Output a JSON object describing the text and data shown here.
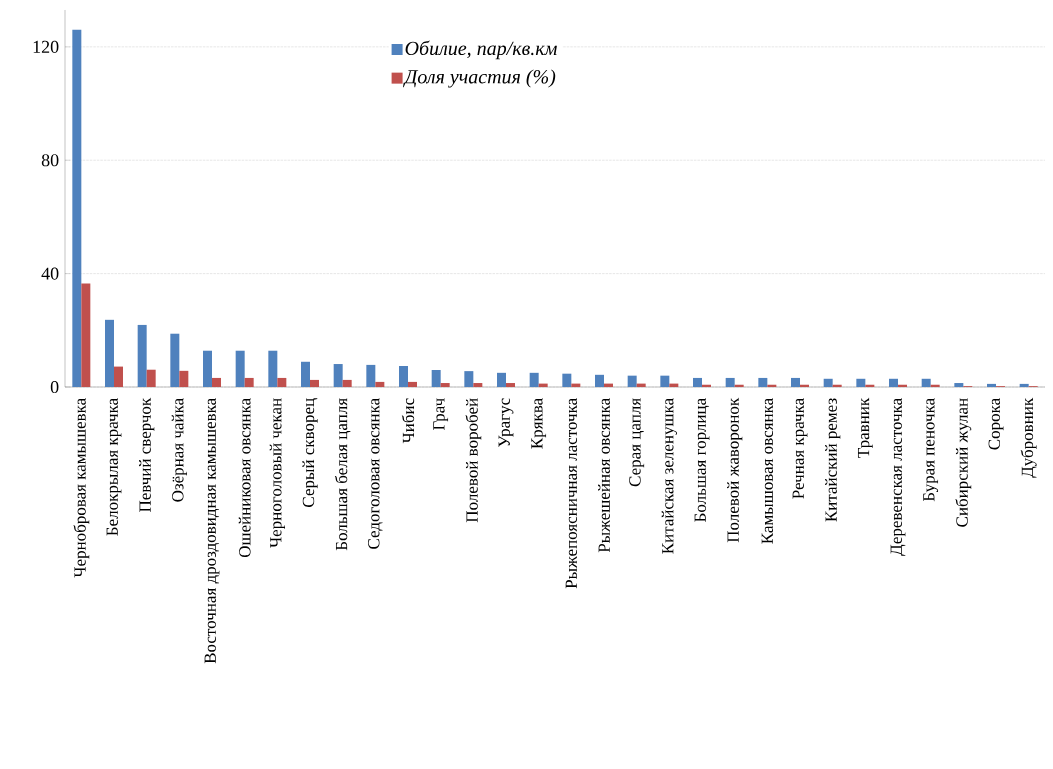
{
  "chart_data": {
    "type": "bar",
    "categories": [
      "Чернобровая камышевка",
      "Белокрылая крачка",
      "Певчий сверчок",
      "Озёрная чайка",
      "Восточная дроздовидная камышевка",
      "Ошейниковая овсянка",
      "Черноголовый чекан",
      "Серый скворец",
      "Большая белая цапля",
      "Седоголовая овсянка",
      "Чибис",
      "Грач",
      "Полевой воробей",
      "Урагус",
      "Кряква",
      "Рыжепоясничная ласточка",
      "Рыжешейная овсянка",
      "Серая цапля",
      "Китайская зеленушка",
      "Большая горлица",
      "Полевой жаворонок",
      "Камышовая овсянка",
      "Речная крачка",
      "Китайский ремез",
      "Травник",
      "Деревенская ласточка",
      "Бурая пеночка",
      "Сибирский жулан",
      "Сорока",
      "Дубровник"
    ],
    "series": [
      {
        "name": "*Обилие, пар/кв.км*",
        "color": "#4f81bd",
        "values": [
          126,
          23.7,
          21.9,
          18.8,
          12.8,
          12.8,
          12.8,
          8.9,
          8.1,
          7.8,
          7.4,
          6.0,
          5.6,
          5.0,
          5.0,
          4.7,
          4.3,
          4.0,
          4.0,
          3.2,
          3.2,
          3.2,
          3.2,
          2.9,
          2.9,
          2.9,
          2.9,
          1.4,
          1.1,
          1.1
        ]
      },
      {
        "name": "*Доля участия (%)*",
        "color": "#c0504d",
        "values": [
          36.5,
          7.2,
          6.1,
          5.7,
          3.2,
          3.2,
          3.2,
          2.5,
          2.5,
          1.8,
          1.8,
          1.4,
          1.4,
          1.4,
          1.2,
          1.2,
          1.2,
          1.2,
          1.2,
          0.8,
          0.8,
          0.8,
          0.8,
          0.8,
          0.8,
          0.8,
          0.8,
          0.3,
          0.3,
          0.3
        ]
      }
    ],
    "ylim": [
      0,
      133
    ],
    "yticks": [
      0,
      40,
      80,
      120
    ],
    "grid": "y",
    "legend": "top"
  }
}
